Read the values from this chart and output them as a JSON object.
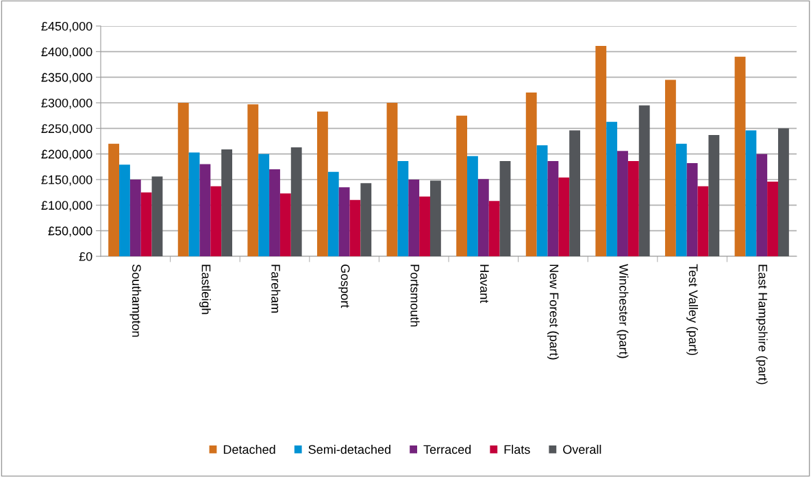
{
  "chart_data": {
    "type": "bar",
    "categories": [
      "Southampton",
      "Eastleigh",
      "Fareham",
      "Gosport",
      "Portsmouth",
      "Havant",
      "New Forest (part)",
      "Winchester (part)",
      "Test Valley (part)",
      "East Hampshire (part)"
    ],
    "series": [
      {
        "name": "Detached",
        "color": "#d2711d",
        "values": [
          220000,
          300000,
          297000,
          283000,
          300000,
          275000,
          320000,
          411000,
          345000,
          390000
        ]
      },
      {
        "name": "Semi-detached",
        "color": "#0092d3",
        "values": [
          179000,
          203000,
          200000,
          165000,
          186000,
          196000,
          217000,
          263000,
          220000,
          246000
        ]
      },
      {
        "name": "Terraced",
        "color": "#74237c",
        "values": [
          150000,
          180000,
          170000,
          135000,
          150000,
          151000,
          186000,
          206000,
          182000,
          200000
        ]
      },
      {
        "name": "Flats",
        "color": "#c3003a",
        "values": [
          125000,
          137000,
          123000,
          110000,
          117000,
          108000,
          154000,
          186000,
          137000,
          146000
        ]
      },
      {
        "name": "Overall",
        "color": "#53565a",
        "values": [
          156000,
          209000,
          213000,
          143000,
          148000,
          186000,
          246000,
          295000,
          237000,
          250000
        ]
      }
    ],
    "ylim": [
      0,
      450000
    ],
    "yticks": [
      {
        "value": 0,
        "label": "£0"
      },
      {
        "value": 50000,
        "label": "£50,000"
      },
      {
        "value": 100000,
        "label": "£100,000"
      },
      {
        "value": 150000,
        "label": "£150,000"
      },
      {
        "value": 200000,
        "label": "£200,000"
      },
      {
        "value": 250000,
        "label": "£250,000"
      },
      {
        "value": 300000,
        "label": "£300,000"
      },
      {
        "value": 350000,
        "label": "£350,000"
      },
      {
        "value": 400000,
        "label": "£400,000"
      },
      {
        "value": 450000,
        "label": "£450,000"
      }
    ],
    "grid": "y",
    "legend": "bottom"
  }
}
